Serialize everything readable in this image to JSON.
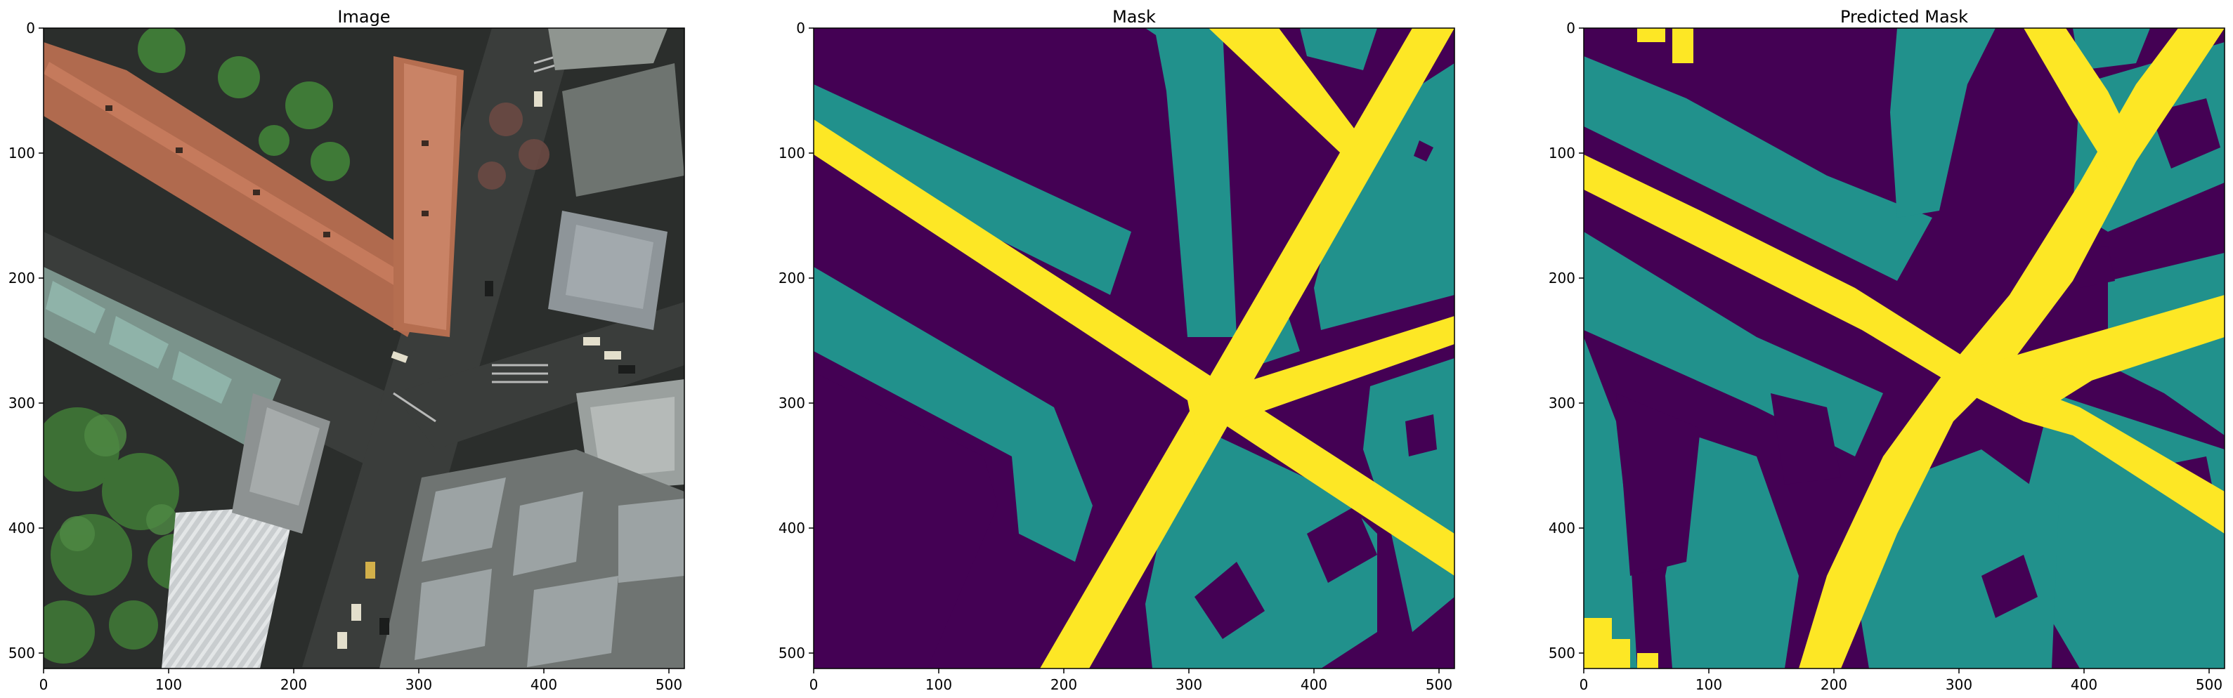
{
  "figure": {
    "colors": {
      "background": "#440154",
      "buildings": "#21918c",
      "roads": "#fde725",
      "axis": "#000000"
    },
    "panels": [
      {
        "id": "image",
        "title": "Image",
        "xticks": [
          "0",
          "100",
          "200",
          "300",
          "400",
          "500"
        ],
        "yticks": [
          "0",
          "100",
          "200",
          "300",
          "400",
          "500"
        ]
      },
      {
        "id": "mask",
        "title": "Mask",
        "xticks": [
          "0",
          "100",
          "200",
          "300",
          "400",
          "500"
        ],
        "yticks": [
          "0",
          "100",
          "200",
          "300",
          "400",
          "500"
        ]
      },
      {
        "id": "predicted",
        "title": "Predicted Mask",
        "xticks": [
          "0",
          "100",
          "200",
          "300",
          "400",
          "500"
        ],
        "yticks": [
          "0",
          "100",
          "200",
          "300",
          "400",
          "500"
        ]
      }
    ]
  }
}
